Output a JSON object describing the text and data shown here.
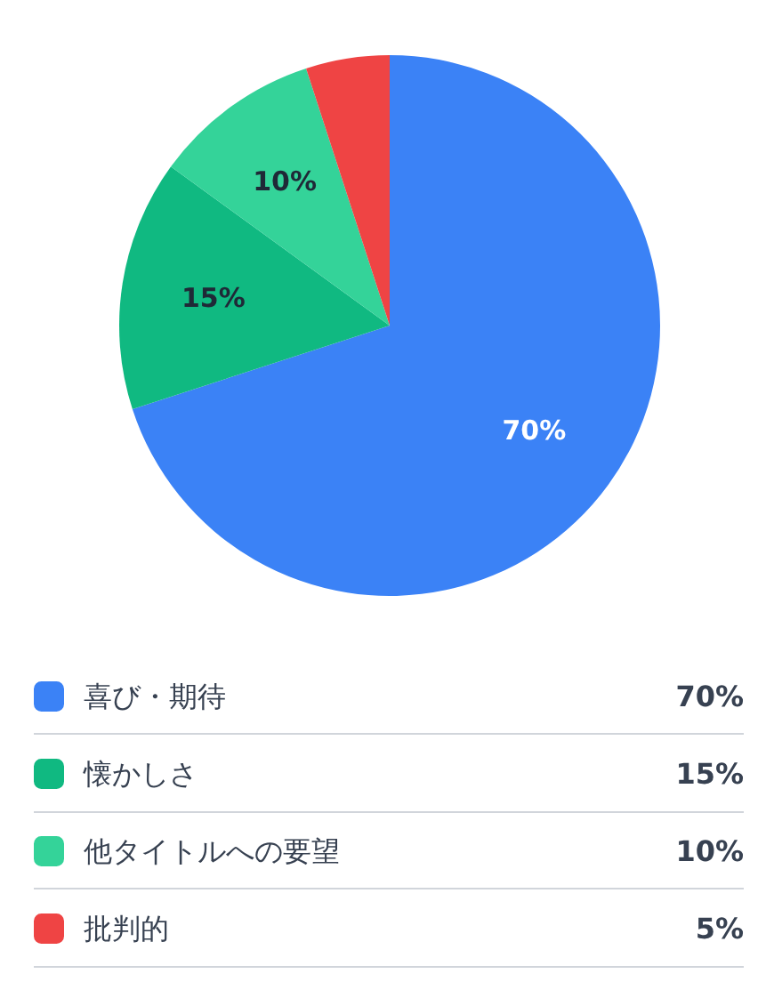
{
  "chart_data": {
    "type": "pie",
    "categories": [
      "喜び・期待",
      "懐かしさ",
      "他タイトルへの要望",
      "批判的"
    ],
    "values": [
      70,
      15,
      10,
      5
    ],
    "colors": [
      "#3b82f6",
      "#10b981",
      "#34d399",
      "#ef4444"
    ],
    "value_labels": [
      "70%",
      "15%",
      "10%",
      "5%"
    ],
    "legend": "bottom"
  }
}
